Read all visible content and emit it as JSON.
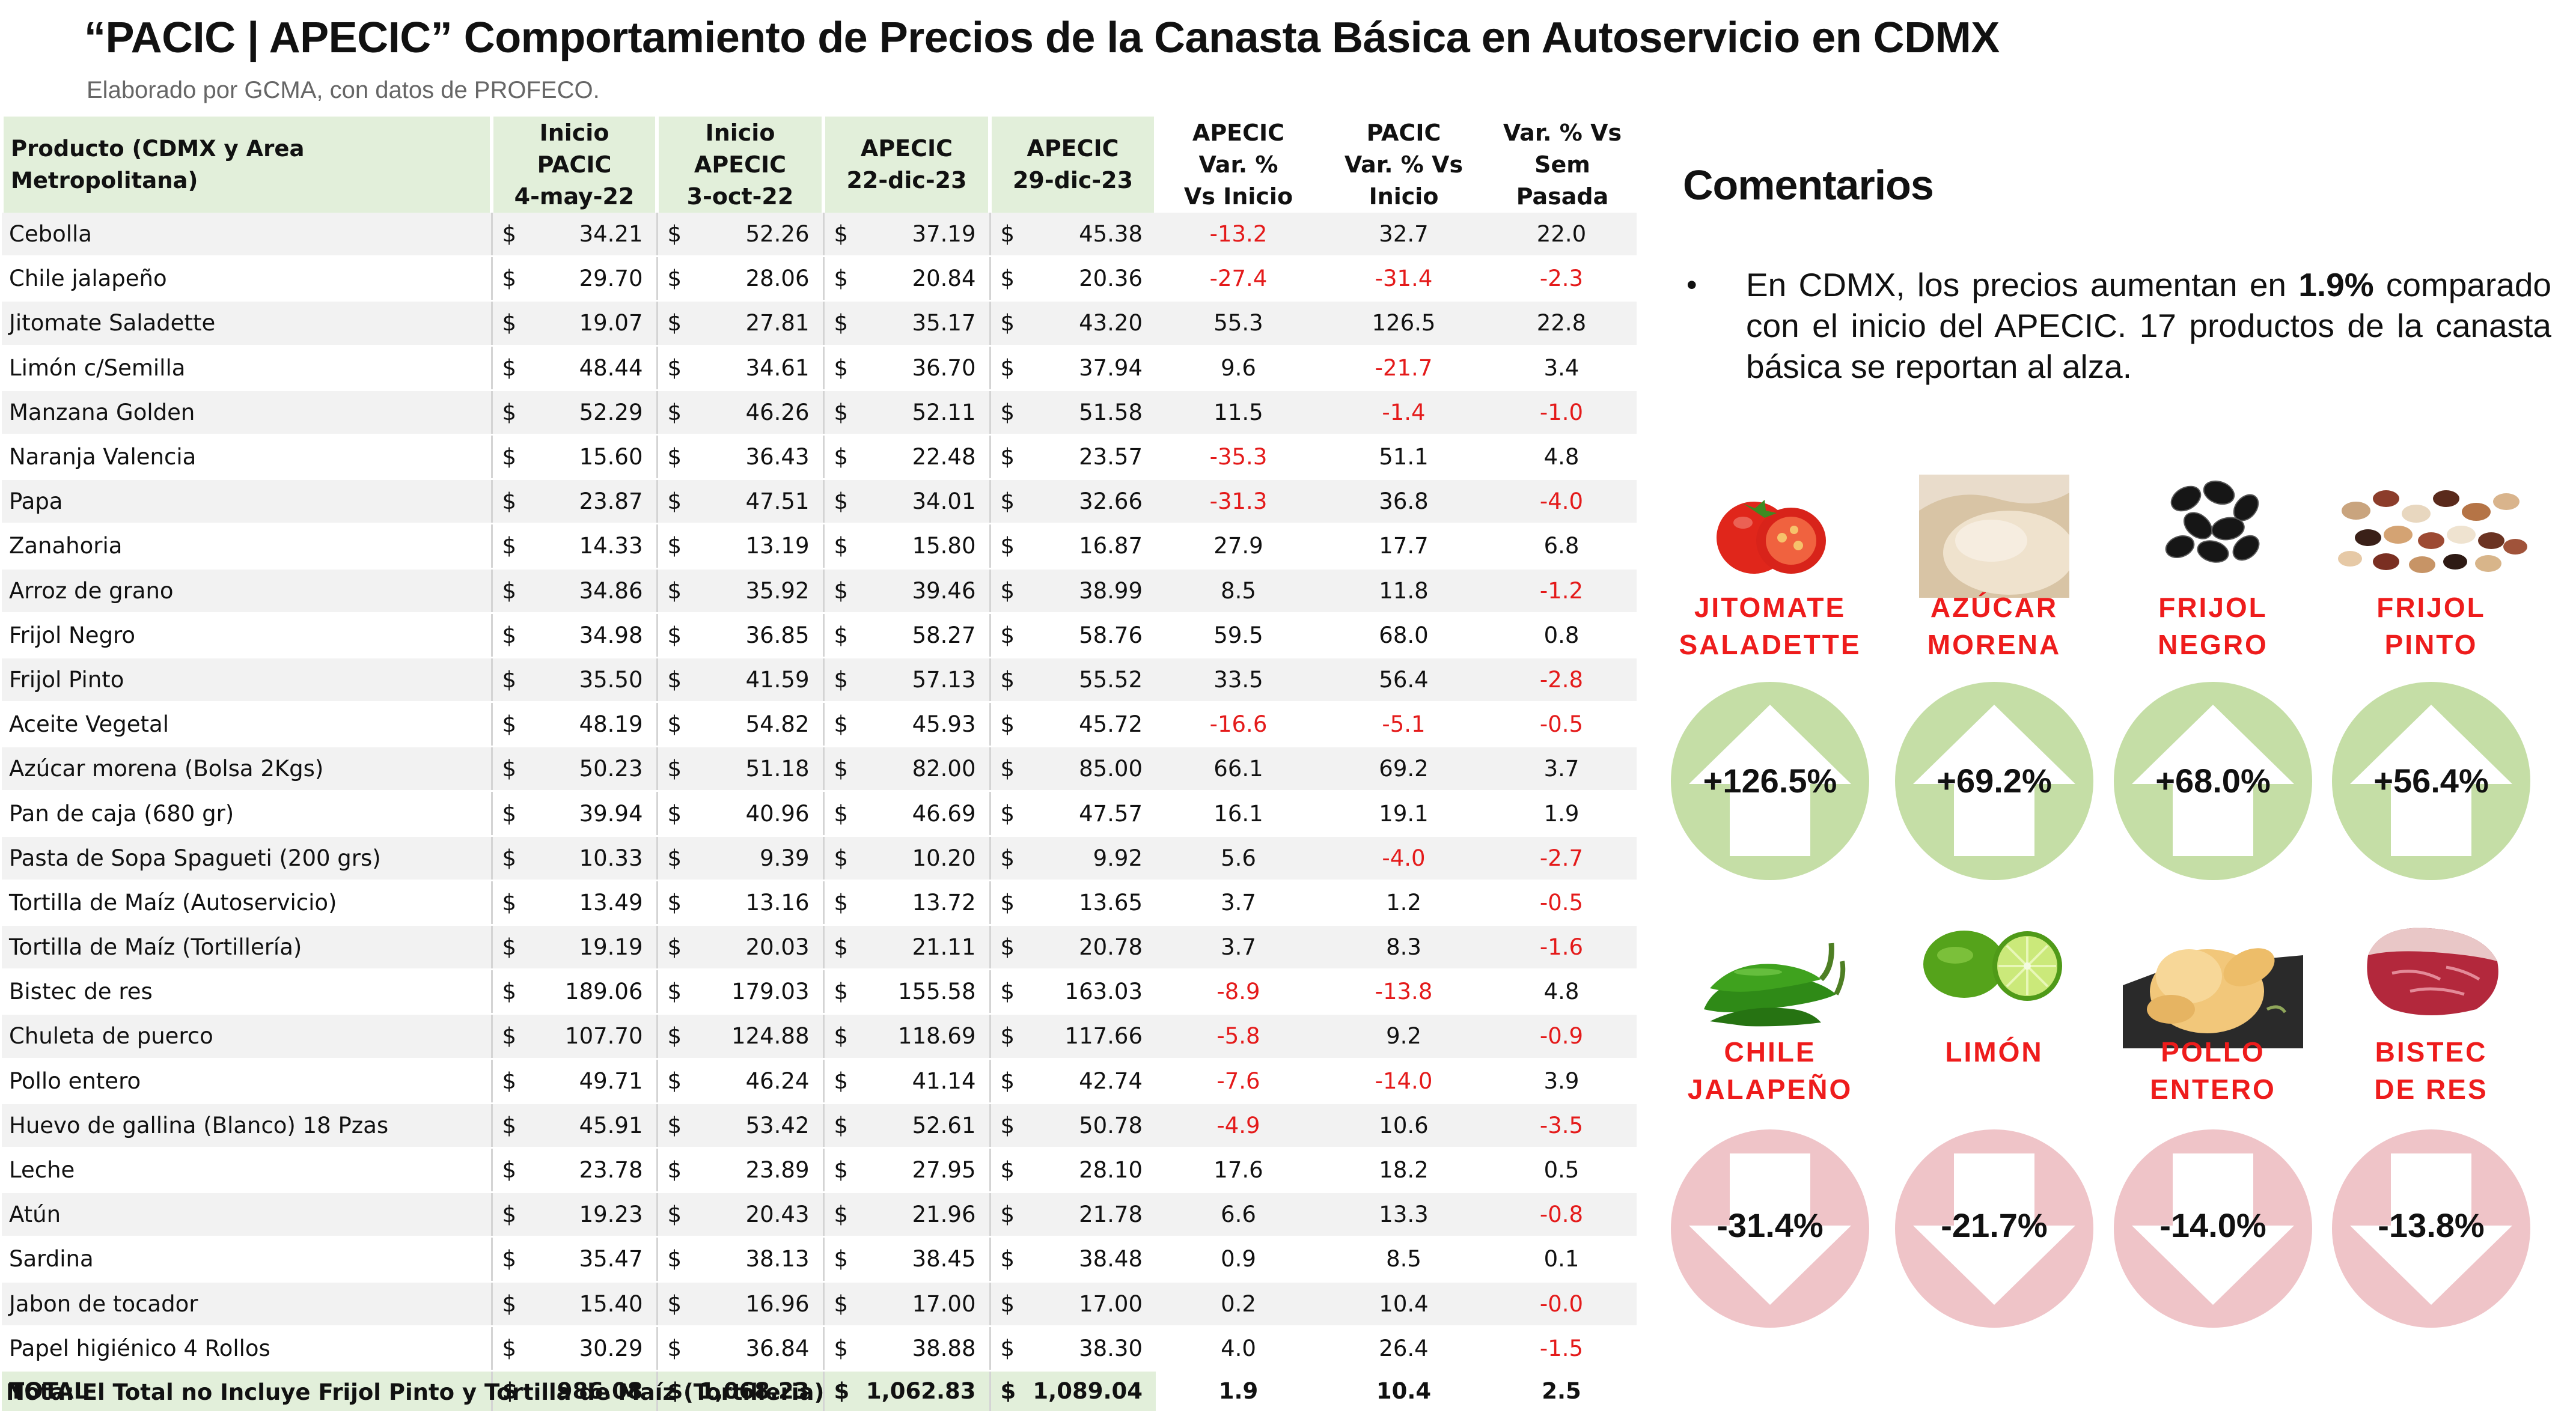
{
  "header": {
    "title": "“PACIC | APECIC” Comportamiento de Precios de la Canasta Básica en Autoservicio en CDMX",
    "subtitle": "Elaborado por GCMA, con datos de PROFECO."
  },
  "table": {
    "currency": "$",
    "headers": {
      "product": "Producto (CDMX y Area Metropolitana)",
      "inicio_pacic": "Inicio\nPACIC\n4-may-22",
      "inicio_apecic": "Inicio\nAPECIC\n3-oct-22",
      "apecic_22dic": "APECIC\n22-dic-23",
      "apecic_29dic": "APECIC\n29-dic-23",
      "var_apecic": "APECIC\nVar. %\nVs  Inicio",
      "var_pacic": "PACIC\nVar. % Vs\nInicio",
      "var_sem": "Var. % Vs\nSem Pasada"
    },
    "rows": [
      {
        "product": "Cebolla",
        "p1": "34.21",
        "p2": "52.26",
        "p3": "37.19",
        "p4": "45.38",
        "v1": "-13.2",
        "v2": "32.7",
        "v3": "22.0"
      },
      {
        "product": "Chile jalapeño",
        "p1": "29.70",
        "p2": "28.06",
        "p3": "20.84",
        "p4": "20.36",
        "v1": "-27.4",
        "v2": "-31.4",
        "v3": "-2.3"
      },
      {
        "product": "Jitomate Saladette",
        "p1": "19.07",
        "p2": "27.81",
        "p3": "35.17",
        "p4": "43.20",
        "v1": "55.3",
        "v2": "126.5",
        "v3": "22.8"
      },
      {
        "product": "Limón c/Semilla",
        "p1": "48.44",
        "p2": "34.61",
        "p3": "36.70",
        "p4": "37.94",
        "v1": "9.6",
        "v2": "-21.7",
        "v3": "3.4"
      },
      {
        "product": "Manzana Golden",
        "p1": "52.29",
        "p2": "46.26",
        "p3": "52.11",
        "p4": "51.58",
        "v1": "11.5",
        "v2": "-1.4",
        "v3": "-1.0"
      },
      {
        "product": "Naranja Valencia",
        "p1": "15.60",
        "p2": "36.43",
        "p3": "22.48",
        "p4": "23.57",
        "v1": "-35.3",
        "v2": "51.1",
        "v3": "4.8"
      },
      {
        "product": "Papa",
        "p1": "23.87",
        "p2": "47.51",
        "p3": "34.01",
        "p4": "32.66",
        "v1": "-31.3",
        "v2": "36.8",
        "v3": "-4.0"
      },
      {
        "product": "Zanahoria",
        "p1": "14.33",
        "p2": "13.19",
        "p3": "15.80",
        "p4": "16.87",
        "v1": "27.9",
        "v2": "17.7",
        "v3": "6.8"
      },
      {
        "product": "Arroz de grano",
        "p1": "34.86",
        "p2": "35.92",
        "p3": "39.46",
        "p4": "38.99",
        "v1": "8.5",
        "v2": "11.8",
        "v3": "-1.2"
      },
      {
        "product": "Frijol Negro",
        "p1": "34.98",
        "p2": "36.85",
        "p3": "58.27",
        "p4": "58.76",
        "v1": "59.5",
        "v2": "68.0",
        "v3": "0.8"
      },
      {
        "product": "Frijol Pinto",
        "p1": "35.50",
        "p2": "41.59",
        "p3": "57.13",
        "p4": "55.52",
        "v1": "33.5",
        "v2": "56.4",
        "v3": "-2.8"
      },
      {
        "product": "Aceite Vegetal",
        "p1": "48.19",
        "p2": "54.82",
        "p3": "45.93",
        "p4": "45.72",
        "v1": "-16.6",
        "v2": "-5.1",
        "v3": "-0.5"
      },
      {
        "product": "Azúcar morena (Bolsa 2Kgs)",
        "p1": "50.23",
        "p2": "51.18",
        "p3": "82.00",
        "p4": "85.00",
        "v1": "66.1",
        "v2": "69.2",
        "v3": "3.7"
      },
      {
        "product": "Pan de caja (680 gr)",
        "p1": "39.94",
        "p2": "40.96",
        "p3": "46.69",
        "p4": "47.57",
        "v1": "16.1",
        "v2": "19.1",
        "v3": "1.9"
      },
      {
        "product": "Pasta de Sopa Spagueti (200 grs)",
        "p1": "10.33",
        "p2": "9.39",
        "p3": "10.20",
        "p4": "9.92",
        "v1": "5.6",
        "v2": "-4.0",
        "v3": "-2.7"
      },
      {
        "product": "Tortilla de Maíz (Autoservicio)",
        "p1": "13.49",
        "p2": "13.16",
        "p3": "13.72",
        "p4": "13.65",
        "v1": "3.7",
        "v2": "1.2",
        "v3": "-0.5"
      },
      {
        "product": "Tortilla de Maíz (Tortillería)",
        "p1": "19.19",
        "p2": "20.03",
        "p3": "21.11",
        "p4": "20.78",
        "v1": "3.7",
        "v2": "8.3",
        "v3": "-1.6"
      },
      {
        "product": "Bistec de res",
        "p1": "189.06",
        "p2": "179.03",
        "p3": "155.58",
        "p4": "163.03",
        "v1": "-8.9",
        "v2": "-13.8",
        "v3": "4.8"
      },
      {
        "product": "Chuleta de puerco",
        "p1": "107.70",
        "p2": "124.88",
        "p3": "118.69",
        "p4": "117.66",
        "v1": "-5.8",
        "v2": "9.2",
        "v3": "-0.9"
      },
      {
        "product": "Pollo entero",
        "p1": "49.71",
        "p2": "46.24",
        "p3": "41.14",
        "p4": "42.74",
        "v1": "-7.6",
        "v2": "-14.0",
        "v3": "3.9"
      },
      {
        "product": "Huevo de gallina (Blanco) 18 Pzas",
        "p1": "45.91",
        "p2": "53.42",
        "p3": "52.61",
        "p4": "50.78",
        "v1": "-4.9",
        "v2": "10.6",
        "v3": "-3.5"
      },
      {
        "product": "Leche",
        "p1": "23.78",
        "p2": "23.89",
        "p3": "27.95",
        "p4": "28.10",
        "v1": "17.6",
        "v2": "18.2",
        "v3": "0.5"
      },
      {
        "product": "Atún",
        "p1": "19.23",
        "p2": "20.43",
        "p3": "21.96",
        "p4": "21.78",
        "v1": "6.6",
        "v2": "13.3",
        "v3": "-0.8"
      },
      {
        "product": "Sardina",
        "p1": "35.47",
        "p2": "38.13",
        "p3": "38.45",
        "p4": "38.48",
        "v1": "0.9",
        "v2": "8.5",
        "v3": "0.1"
      },
      {
        "product": "Jabon de tocador",
        "p1": "15.40",
        "p2": "16.96",
        "p3": "17.00",
        "p4": "17.00",
        "v1": "0.2",
        "v2": "10.4",
        "v3": "-0.0"
      },
      {
        "product": "Papel higiénico 4 Rollos",
        "p1": "30.29",
        "p2": "36.84",
        "p3": "38.88",
        "p4": "38.30",
        "v1": "4.0",
        "v2": "26.4",
        "v3": "-1.5"
      }
    ],
    "total": {
      "product": "TOTAL",
      "p1": "986.08",
      "p2": "1,068.23",
      "p3": "1,062.83",
      "p4": "1,089.04",
      "v1": "1.9",
      "v2": "10.4",
      "v3": "2.5"
    },
    "note": "Nota: El Total no Incluye Frijol Pinto y Tortilla de Maíz (Tortilleria)"
  },
  "comments": {
    "title": "Comentarios",
    "bullet": "•",
    "text_before": "En CDMX, los precios aumentan en ",
    "highlight": "1.9%",
    "text_after": " comparado con el inicio del APECIC. 17 productos de la canasta básica se reportan al alza."
  },
  "highlights_up": [
    {
      "name": "JITOMATE\nSALADETTE",
      "value": "+126.5%",
      "icon": "tomato-icon"
    },
    {
      "name": "AZÚCAR\nMORENA",
      "value": "+69.2%",
      "icon": "brown-sugar-icon"
    },
    {
      "name": "FRIJOL\nNEGRO",
      "value": "+68.0%",
      "icon": "black-beans-icon"
    },
    {
      "name": "FRIJOL\nPINTO",
      "value": "+56.4%",
      "icon": "pinto-beans-icon"
    }
  ],
  "highlights_down": [
    {
      "name": "CHILE\nJALAPEÑO",
      "value": "-31.4%",
      "icon": "jalapeno-icon"
    },
    {
      "name": "LIMÓN",
      "value": "-21.7%",
      "icon": "lime-icon"
    },
    {
      "name": "POLLO\nENTERO",
      "value": "-14.0%",
      "icon": "chicken-icon"
    },
    {
      "name": "BISTEC\nDE RES",
      "value": "-13.8%",
      "icon": "beef-steak-icon"
    }
  ],
  "colors": {
    "header_green": "#e2efda",
    "negative_red": "#e41a1a",
    "product_label_red": "#ee1c1c",
    "up_circle": "#c5dea6",
    "down_circle": "#efc4c8"
  }
}
